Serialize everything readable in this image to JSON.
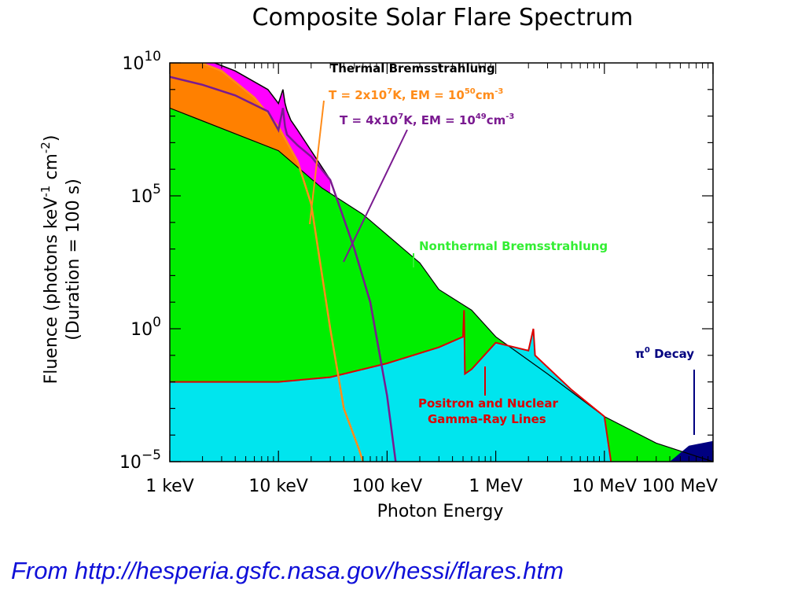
{
  "colors": {
    "thermal_hot": "#ff8000",
    "thermal_cool": "#ff00ff",
    "nonthermal": "#00ee00",
    "gamma": "#00e5ee",
    "gamma_line": "#dd0000",
    "pion": "#000080",
    "orange_curve": "#ff8c1a",
    "purple_curve": "#7a1a90",
    "nonthermal_label": "#33ee33",
    "source_text": "#1010d8"
  },
  "chart_data": {
    "type": "area",
    "title": "Composite Solar Flare Spectrum",
    "xlabel": "Photon Energy",
    "ylabel_line1": "Fluence (photons keV",
    "ylabel_exp1": "-1",
    "ylabel_mid": " cm",
    "ylabel_exp2": "-2",
    "ylabel_end": ")",
    "ylabel_line2": "(Duration = 100 s)",
    "x_scale": "log",
    "y_scale": "log",
    "xlim_keV": [
      1,
      100000
    ],
    "ylim": [
      1e-05,
      10000000000.0
    ],
    "x_ticks": [
      {
        "value": 1,
        "label": "1 keV"
      },
      {
        "value": 10,
        "label": "10 keV"
      },
      {
        "value": 100,
        "label": "100 keV"
      },
      {
        "value": 1000,
        "label": "1 MeV"
      },
      {
        "value": 10000,
        "label": "10 MeV"
      },
      {
        "value": 100000,
        "label": "100 MeV"
      }
    ],
    "y_ticks": [
      {
        "value": 10000000000.0,
        "base": "10",
        "exp": "10"
      },
      {
        "value": 100000.0,
        "base": "10",
        "exp": "5"
      },
      {
        "value": 1,
        "base": "10",
        "exp": "0"
      },
      {
        "value": 1e-05,
        "base": "10",
        "exp": "−5"
      }
    ],
    "series": [
      {
        "name": "Thermal Bremsstrahlung",
        "x_keV": [
          1,
          2,
          4,
          8,
          10,
          11,
          11.5,
          12,
          13,
          15,
          20,
          30
        ],
        "fluence": [
          30000000000.0,
          15000000000.0,
          5000000000.0,
          1000000000.0,
          300000000.0,
          1000000000.0,
          300000000.0,
          160000000.0,
          70000000.0,
          30000000.0,
          5000000.0,
          400000.0
        ]
      },
      {
        "name": "T = 2x10^7 K, EM = 10^50 cm^-3",
        "x_keV": [
          1,
          3,
          6,
          10,
          15,
          20,
          30,
          40,
          55,
          60
        ],
        "fluence": [
          30000000000.0,
          5000000000.0,
          500000000.0,
          40000000.0,
          2000000.0,
          50000.0,
          1,
          0.001,
          3e-05,
          1e-05
        ]
      },
      {
        "name": "T = 4x10^7 K, EM = 10^49 cm^-3",
        "x_keV": [
          1,
          2,
          4,
          8,
          10,
          11,
          11.5,
          12,
          15,
          20,
          30,
          50,
          70,
          100,
          120
        ],
        "fluence": [
          3000000000.0,
          1500000000.0,
          600000000.0,
          150000000.0,
          30000000.0,
          200000000.0,
          40000000.0,
          20000000.0,
          8000000.0,
          3000000.0,
          400000.0,
          1000.0,
          10,
          0.003,
          1e-05
        ]
      },
      {
        "name": "Nonthermal Bremsstrahlung",
        "x_keV": [
          1,
          10,
          25,
          60,
          200,
          300,
          600,
          1000,
          3000,
          10000,
          30000,
          100000,
          125000
        ],
        "fluence": [
          200000000.0,
          5000000.0,
          200000.0,
          20000.0,
          300,
          30,
          5,
          0.5,
          0.02,
          0.0005,
          5e-05,
          5e-06,
          3e-06
        ]
      },
      {
        "name": "Positron and Nuclear Gamma-Ray Lines",
        "x_keV": [
          1,
          10,
          30,
          60,
          100,
          300,
          500,
          511,
          520,
          600,
          1000,
          2000,
          2223,
          2300,
          5000,
          10000,
          11500
        ],
        "fluence": [
          0.01,
          0.01,
          0.015,
          0.03,
          0.05,
          0.2,
          0.5,
          5,
          0.02,
          0.03,
          0.3,
          0.15,
          1,
          0.1,
          0.005,
          0.0005,
          1e-05
        ]
      },
      {
        "name": "π0 Decay",
        "x_keV": [
          40000,
          60000,
          100000,
          125000
        ],
        "fluence": [
          1e-05,
          4e-05,
          6e-05,
          6e-05
        ]
      }
    ],
    "annotations": {
      "thermal": "Thermal Bremsstrahlung",
      "t1_prefix": "T = 2x10",
      "t1_exp": "7",
      "t1_mid": "K, EM = 10",
      "t1_exp2": "50",
      "t1_unit": "cm",
      "t1_exp3": "-3",
      "t2_prefix": "T = 4x10",
      "t2_exp": "7",
      "t2_mid": "K, EM = 10",
      "t2_exp2": "49",
      "t2_unit": "cm",
      "t2_exp3": "-3",
      "nonthermal": "Nonthermal Bremsstrahlung",
      "pion_sym": "π",
      "pion_exp": "0",
      "pion_rest": " Decay",
      "gamma_line1": "Positron and Nuclear",
      "gamma_line2": "Gamma-Ray Lines"
    }
  },
  "source_text": "From http://hesperia.gsfc.nasa.gov/hessi/flares.htm"
}
